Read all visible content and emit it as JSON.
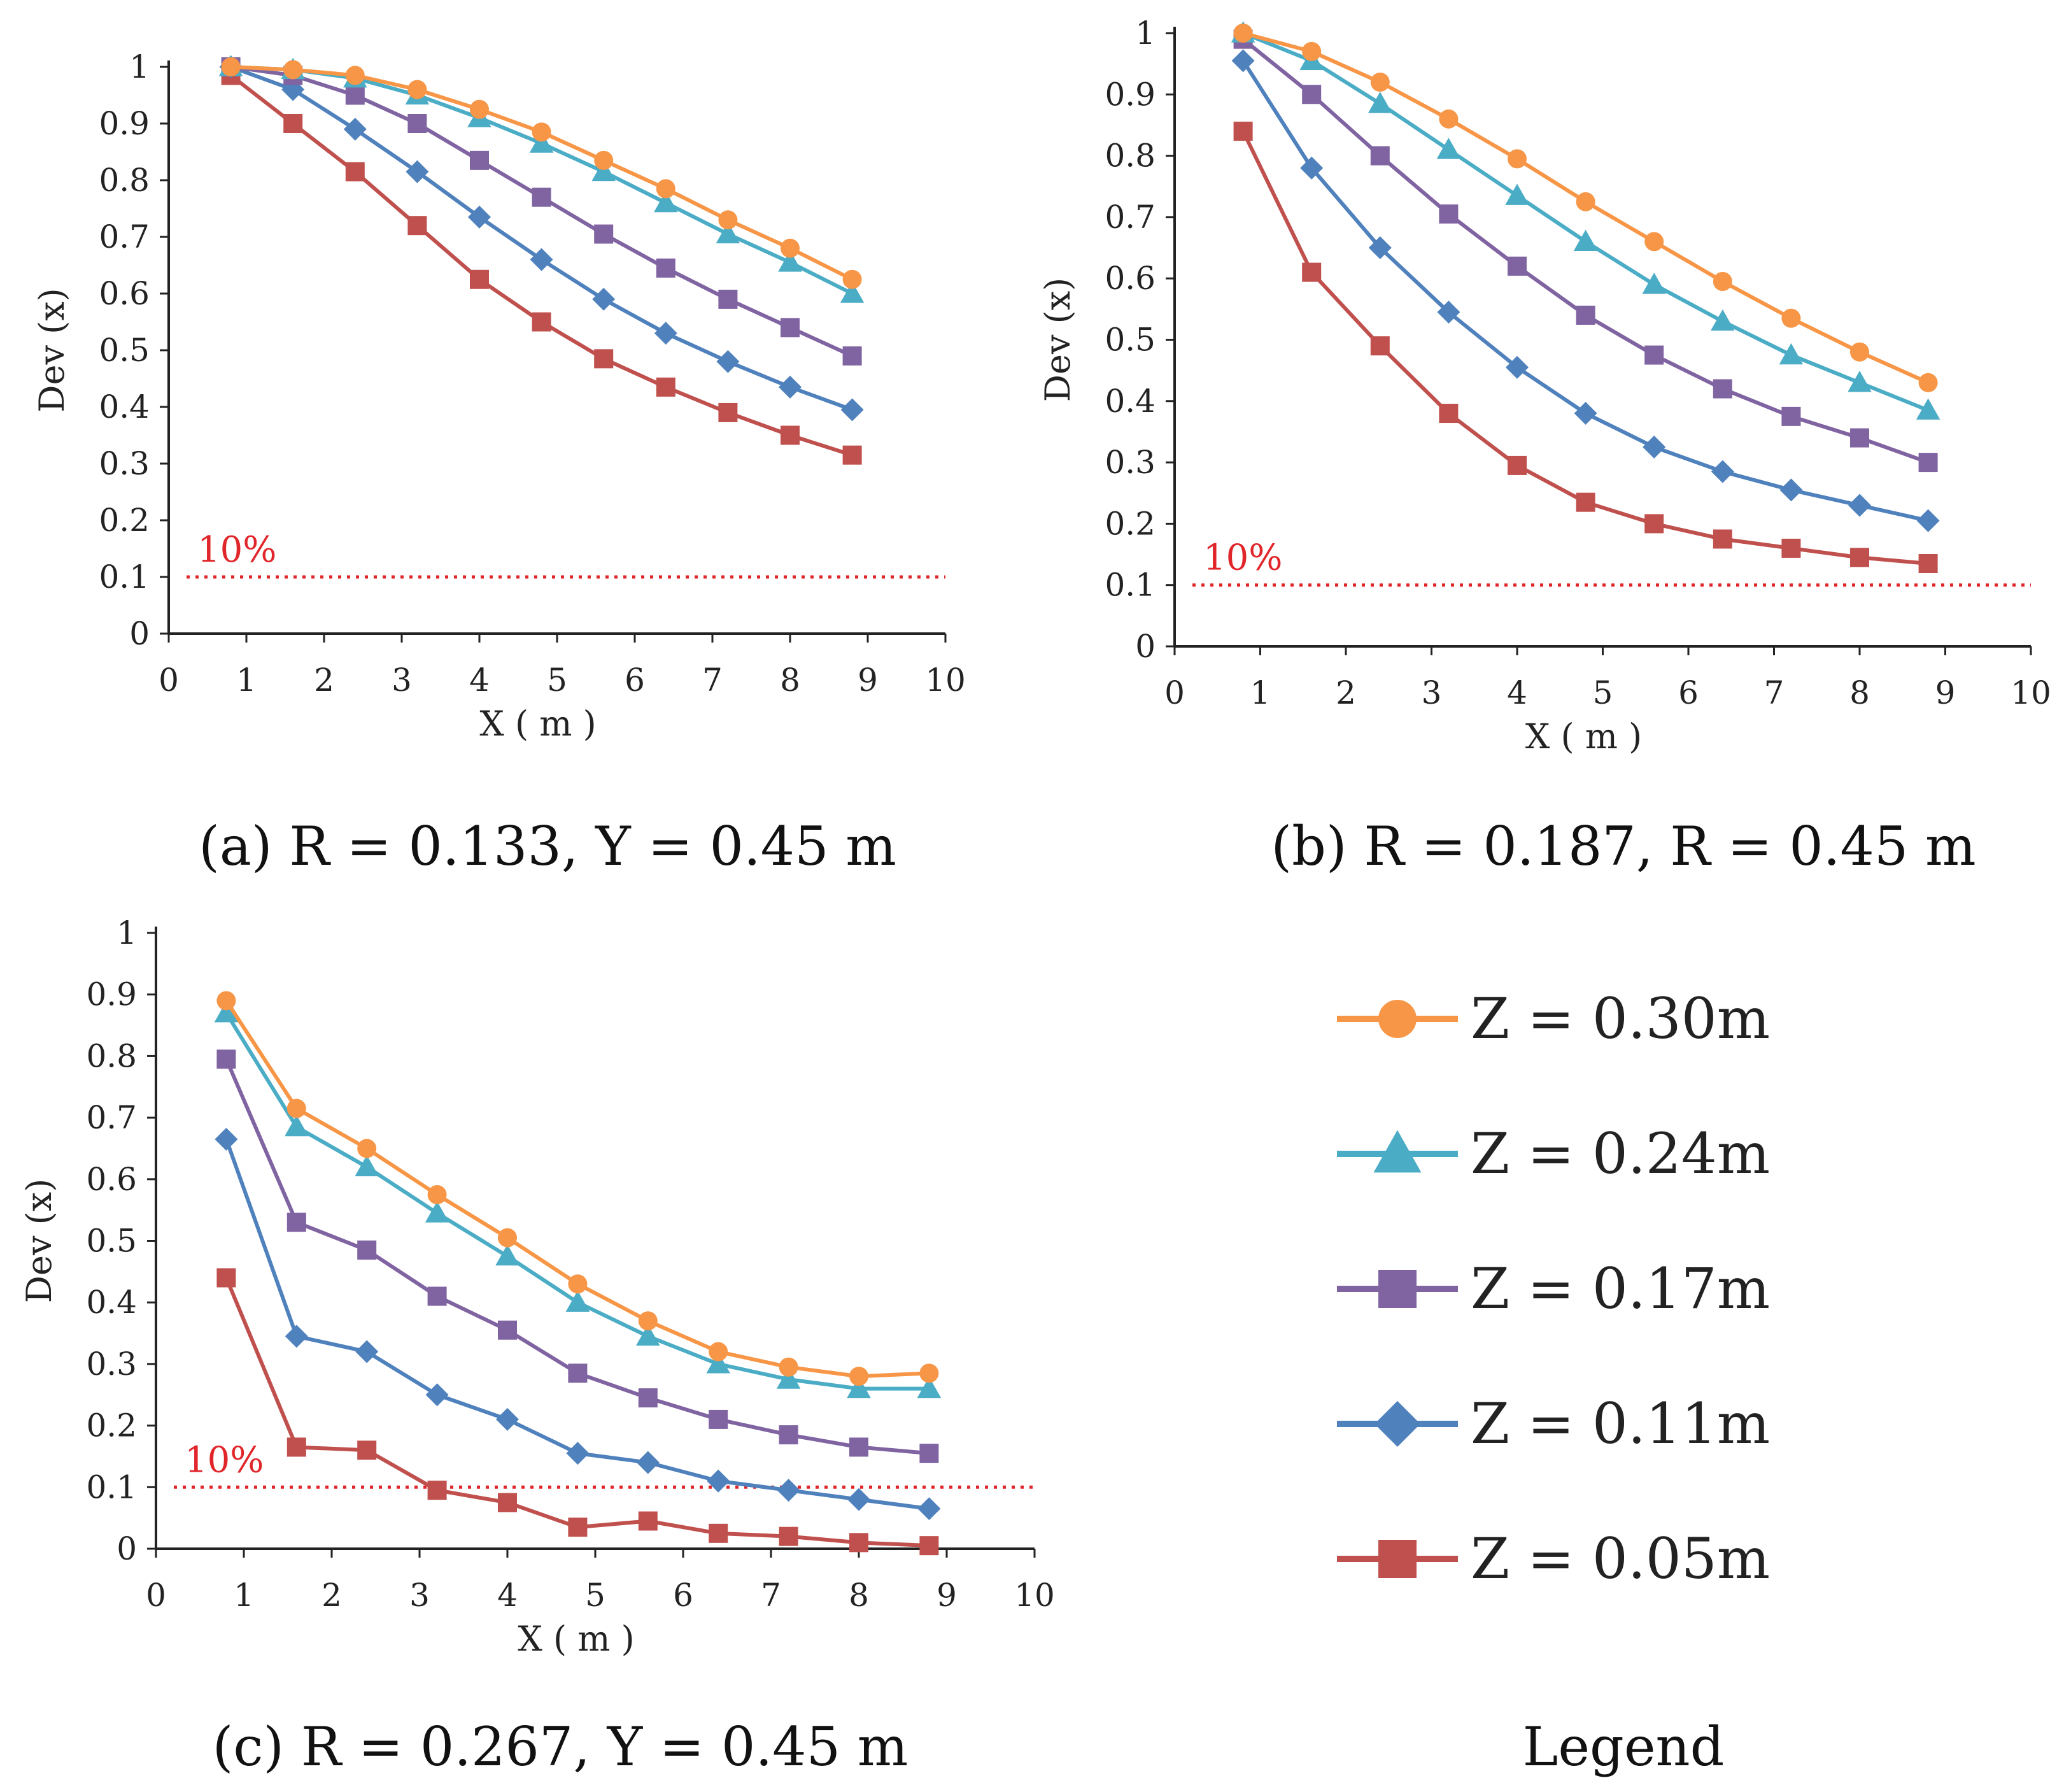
{
  "chart_data": [
    {
      "type": "line",
      "panel": "a",
      "caption": "(a) R = 0.133, Y = 0.45 m",
      "xlabel": "X ( m )",
      "ylabel": "Dev (x)",
      "xlim": [
        0,
        10
      ],
      "ylim": [
        0,
        1
      ],
      "x_ticks": [
        "0",
        "1",
        "2",
        "3",
        "4",
        "5",
        "6",
        "7",
        "8",
        "9",
        "10"
      ],
      "y_ticks": [
        "0",
        "0.1",
        "0.2",
        "0.3",
        "0.4",
        "0.5",
        "0.6",
        "0.7",
        "0.8",
        "0.9",
        "1"
      ],
      "reference_line": {
        "value": 0.1,
        "label": "10%"
      },
      "x": [
        0.8,
        1.6,
        2.4,
        3.2,
        4.0,
        4.8,
        5.6,
        6.4,
        7.2,
        8.0,
        8.8
      ],
      "series": [
        {
          "name": "Z = 0.30m",
          "values": [
            1.0,
            0.995,
            0.985,
            0.96,
            0.925,
            0.885,
            0.835,
            0.785,
            0.73,
            0.68,
            0.625
          ]
        },
        {
          "name": "Z = 0.24m",
          "values": [
            1.0,
            0.995,
            0.98,
            0.95,
            0.91,
            0.865,
            0.815,
            0.76,
            0.705,
            0.655,
            0.6
          ]
        },
        {
          "name": "Z = 0.17m",
          "values": [
            1.0,
            0.985,
            0.95,
            0.9,
            0.835,
            0.77,
            0.705,
            0.645,
            0.59,
            0.54,
            0.49
          ]
        },
        {
          "name": "Z = 0.11m",
          "values": [
            1.0,
            0.96,
            0.89,
            0.815,
            0.735,
            0.66,
            0.59,
            0.53,
            0.48,
            0.435,
            0.395
          ]
        },
        {
          "name": "Z = 0.05m",
          "values": [
            0.985,
            0.9,
            0.815,
            0.72,
            0.625,
            0.55,
            0.485,
            0.435,
            0.39,
            0.35,
            0.315
          ]
        }
      ]
    },
    {
      "type": "line",
      "panel": "b",
      "caption": "(b) R = 0.187, R = 0.45 m",
      "xlabel": "X ( m )",
      "ylabel": "Dev (x)",
      "xlim": [
        0,
        10
      ],
      "ylim": [
        0,
        1
      ],
      "x_ticks": [
        "0",
        "1",
        "2",
        "3",
        "4",
        "5",
        "6",
        "7",
        "8",
        "9",
        "10"
      ],
      "y_ticks": [
        "0",
        "0.1",
        "0.2",
        "0.3",
        "0.4",
        "0.5",
        "0.6",
        "0.7",
        "0.8",
        "0.9",
        "1"
      ],
      "reference_line": {
        "value": 0.1,
        "label": "10%"
      },
      "x": [
        0.8,
        1.6,
        2.4,
        3.2,
        4.0,
        4.8,
        5.6,
        6.4,
        7.2,
        8.0,
        8.8
      ],
      "series": [
        {
          "name": "Z = 0.30m",
          "values": [
            1.0,
            0.97,
            0.92,
            0.86,
            0.795,
            0.725,
            0.66,
            0.595,
            0.535,
            0.48,
            0.43
          ]
        },
        {
          "name": "Z = 0.24m",
          "values": [
            1.0,
            0.955,
            0.885,
            0.81,
            0.735,
            0.66,
            0.59,
            0.53,
            0.475,
            0.43,
            0.385
          ]
        },
        {
          "name": "Z = 0.17m",
          "values": [
            0.99,
            0.9,
            0.8,
            0.705,
            0.62,
            0.54,
            0.475,
            0.42,
            0.375,
            0.34,
            0.3
          ]
        },
        {
          "name": "Z = 0.11m",
          "values": [
            0.955,
            0.78,
            0.65,
            0.545,
            0.455,
            0.38,
            0.325,
            0.285,
            0.255,
            0.23,
            0.205
          ]
        },
        {
          "name": "Z = 0.05m",
          "values": [
            0.84,
            0.61,
            0.49,
            0.38,
            0.295,
            0.235,
            0.2,
            0.175,
            0.16,
            0.145,
            0.135
          ]
        }
      ]
    },
    {
      "type": "line",
      "panel": "c",
      "caption": "(c) R = 0.267, Y = 0.45 m",
      "xlabel": "X ( m )",
      "ylabel": "Dev (x)",
      "xlim": [
        0,
        10
      ],
      "ylim": [
        0,
        1
      ],
      "x_ticks": [
        "0",
        "1",
        "2",
        "3",
        "4",
        "5",
        "6",
        "7",
        "8",
        "9",
        "10"
      ],
      "y_ticks": [
        "0",
        "0.1",
        "0.2",
        "0.3",
        "0.4",
        "0.5",
        "0.6",
        "0.7",
        "0.8",
        "0.9",
        "1"
      ],
      "reference_line": {
        "value": 0.1,
        "label": "10%"
      },
      "x": [
        0.8,
        1.6,
        2.4,
        3.2,
        4.0,
        4.8,
        5.6,
        6.4,
        7.2,
        8.0,
        8.8
      ],
      "series": [
        {
          "name": "Z = 0.30m",
          "values": [
            0.89,
            0.715,
            0.65,
            0.575,
            0.505,
            0.43,
            0.37,
            0.32,
            0.295,
            0.28,
            0.285
          ]
        },
        {
          "name": "Z = 0.24m",
          "values": [
            0.87,
            0.685,
            0.62,
            0.545,
            0.475,
            0.4,
            0.345,
            0.3,
            0.275,
            0.26,
            0.26
          ]
        },
        {
          "name": "Z = 0.17m",
          "values": [
            0.795,
            0.53,
            0.485,
            0.41,
            0.355,
            0.285,
            0.245,
            0.21,
            0.185,
            0.165,
            0.155
          ]
        },
        {
          "name": "Z = 0.11m",
          "values": [
            0.665,
            0.345,
            0.32,
            0.25,
            0.21,
            0.155,
            0.14,
            0.11,
            0.095,
            0.08,
            0.065
          ]
        },
        {
          "name": "Z = 0.05m",
          "values": [
            0.44,
            0.165,
            0.16,
            0.095,
            0.075,
            0.035,
            0.045,
            0.025,
            0.02,
            0.01,
            0.005
          ]
        }
      ]
    }
  ],
  "series_styles": [
    {
      "name": "Z = 0.30m",
      "color": "#f79646",
      "marker": "circle"
    },
    {
      "name": "Z = 0.24m",
      "color": "#4bacc6",
      "marker": "triangle"
    },
    {
      "name": "Z = 0.17m",
      "color": "#8064a2",
      "marker": "square"
    },
    {
      "name": "Z = 0.11m",
      "color": "#4f81bd",
      "marker": "diamond"
    },
    {
      "name": "Z = 0.05m",
      "color": "#c0504d",
      "marker": "square"
    }
  ],
  "reference_color": "#e0262a",
  "legend": {
    "title": "Legend",
    "items": [
      "Z = 0.30m",
      "Z = 0.24m",
      "Z = 0.17m",
      "Z = 0.11m",
      "Z = 0.05m"
    ]
  }
}
